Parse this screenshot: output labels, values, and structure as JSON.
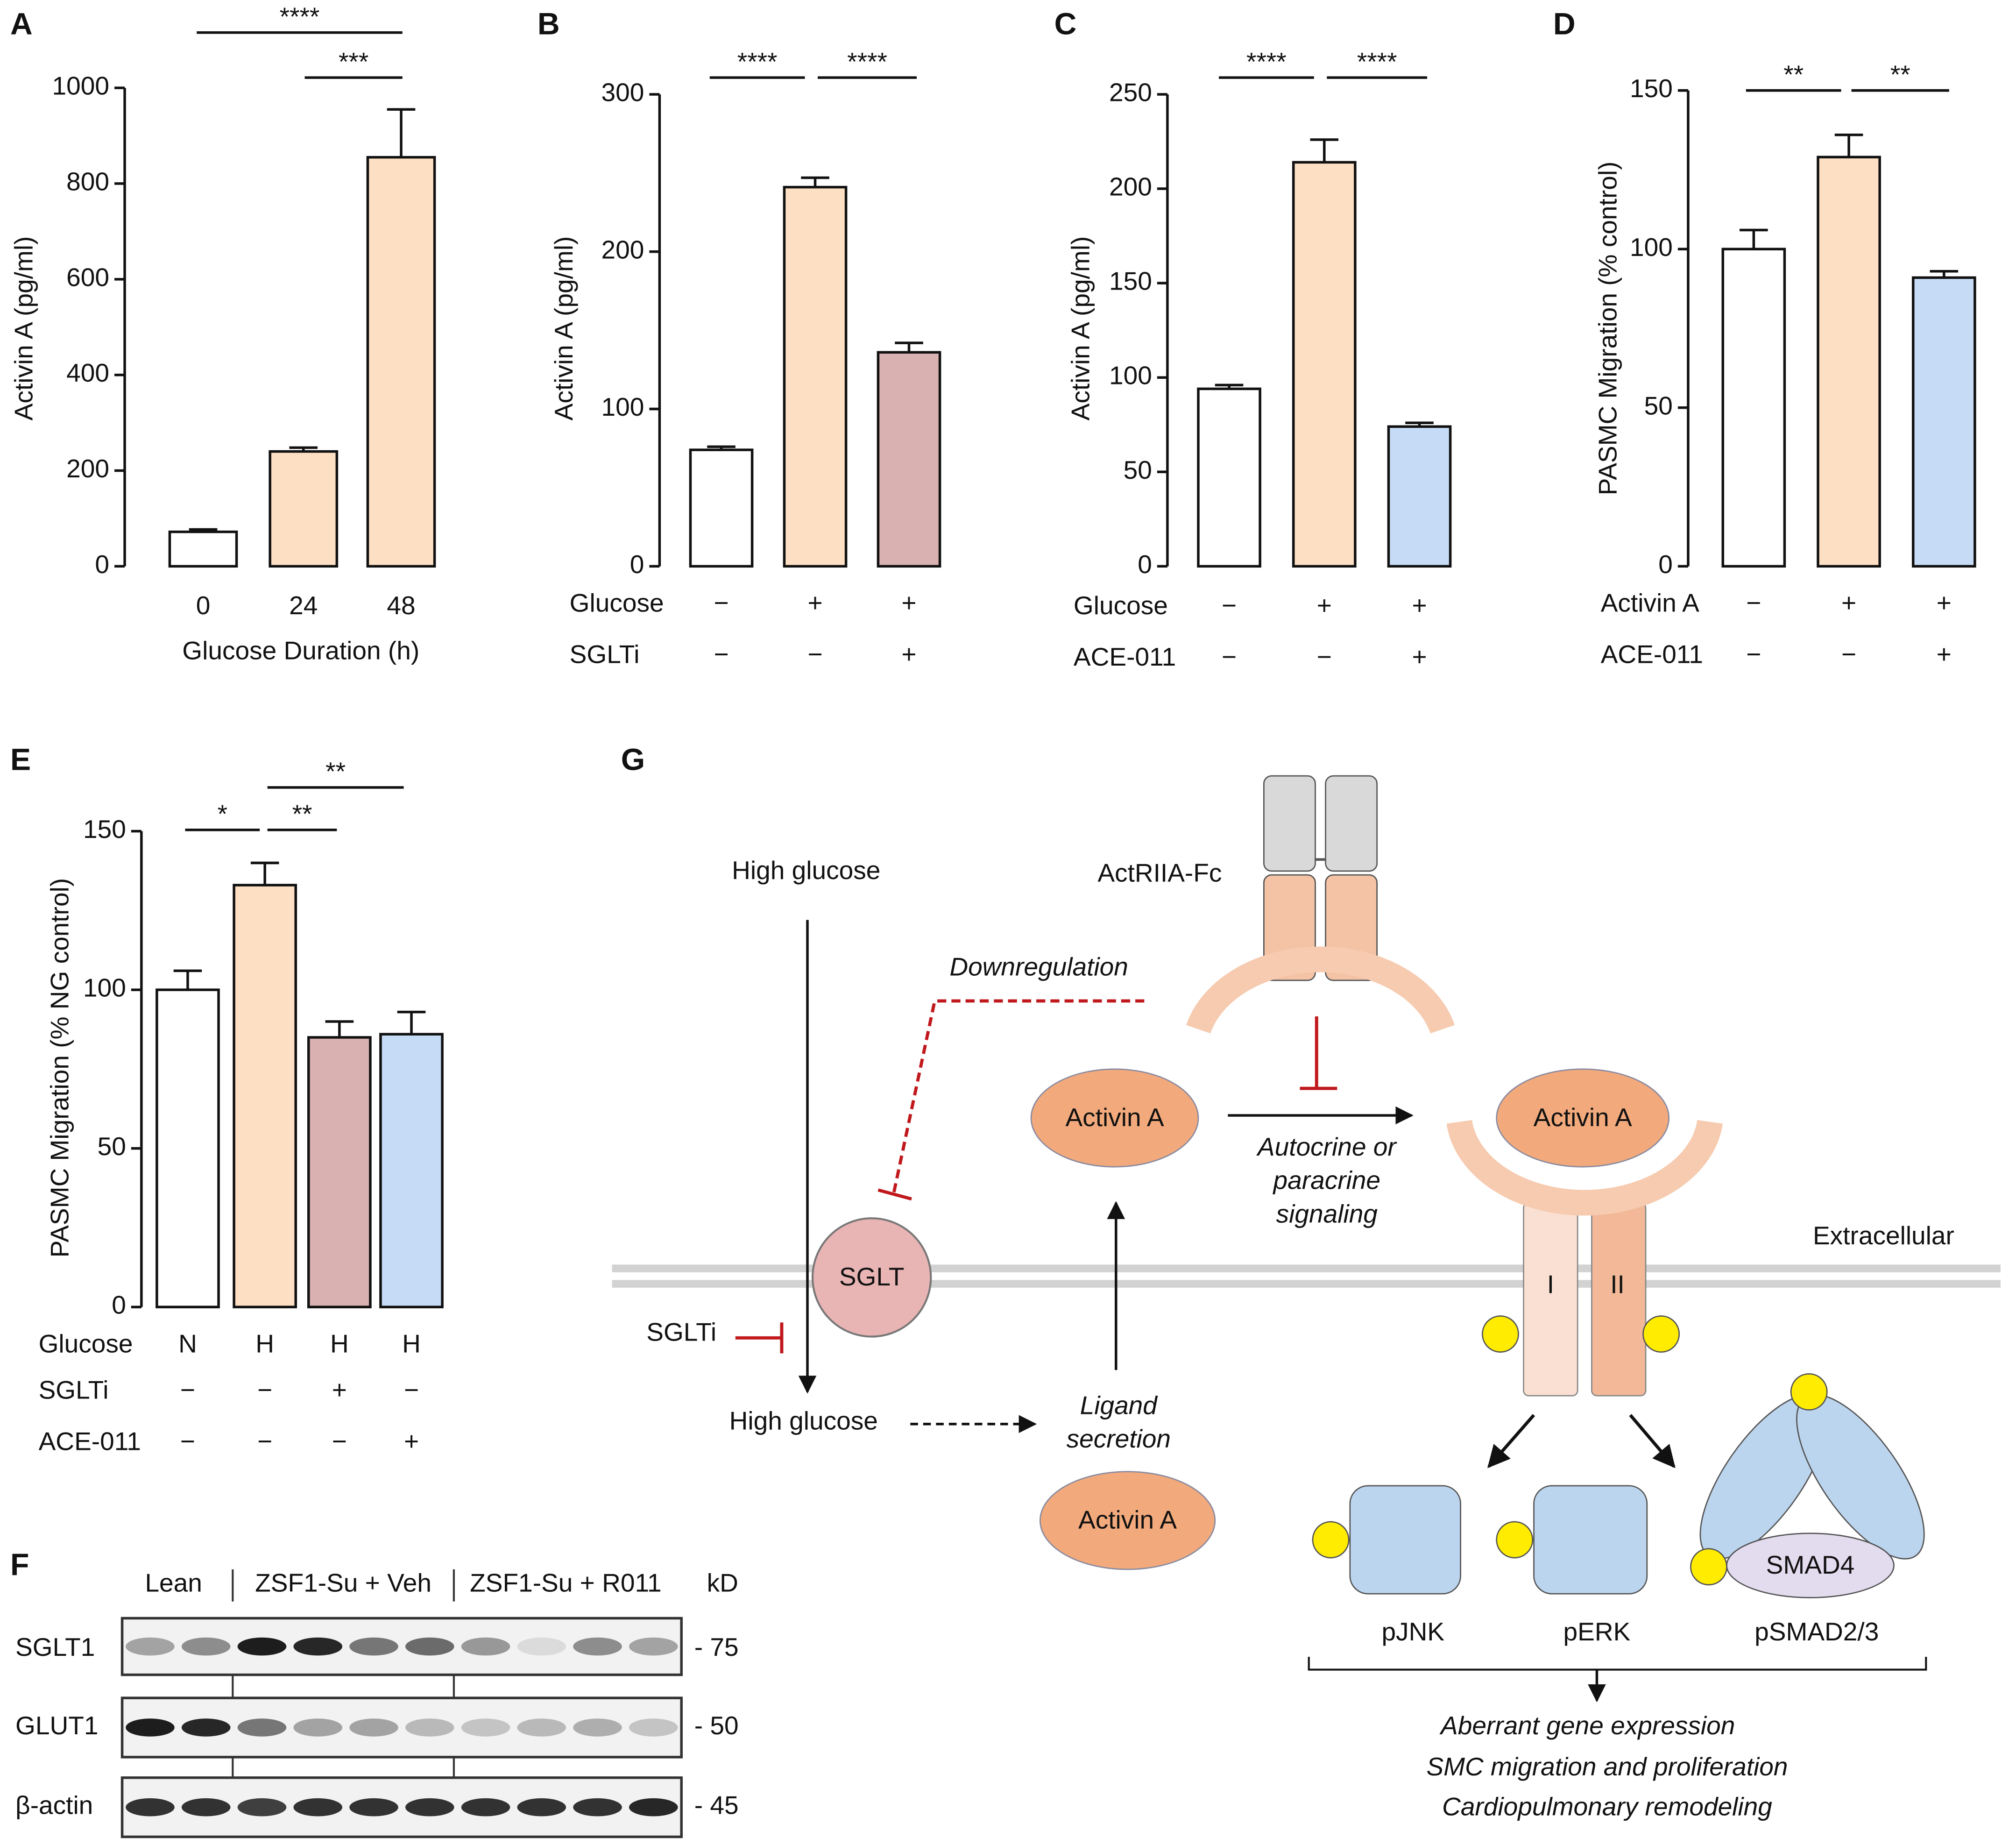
{
  "chart_data": [
    {
      "type": "bar",
      "panel": "A",
      "ylabel": "Activin A (pg/ml)",
      "xlabel": "Glucose Duration (h)",
      "categories": [
        "0",
        "24",
        "48"
      ],
      "values": [
        72,
        240,
        855
      ],
      "errors": [
        5,
        8,
        100
      ],
      "colors": [
        "#ffffff",
        "#fde0c4",
        "#fde0c4"
      ],
      "ylim": [
        0,
        1000
      ],
      "yticks": [
        0,
        200,
        400,
        600,
        800,
        1000
      ],
      "annotations": [
        "****",
        "***"
      ]
    },
    {
      "type": "bar",
      "panel": "B",
      "ylabel": "Activin A (pg/ml)",
      "conditions": [
        {
          "name": "Glucose",
          "values": [
            "−",
            "+",
            "+"
          ]
        },
        {
          "name": "SGLTi",
          "values": [
            "−",
            "−",
            "+"
          ]
        }
      ],
      "values": [
        74,
        241,
        136
      ],
      "errors": [
        2,
        6,
        6
      ],
      "colors": [
        "#ffffff",
        "#fde0c4",
        "#d9b1b1"
      ],
      "ylim": [
        0,
        300
      ],
      "yticks": [
        0,
        100,
        200,
        300
      ],
      "annotations": [
        "****",
        "****"
      ]
    },
    {
      "type": "bar",
      "panel": "C",
      "ylabel": "Activin A (pg/ml)",
      "conditions": [
        {
          "name": "Glucose",
          "values": [
            "−",
            "+",
            "+"
          ]
        },
        {
          "name": "ACE-011",
          "values": [
            "−",
            "−",
            "+"
          ]
        }
      ],
      "values": [
        94,
        214,
        74
      ],
      "errors": [
        2,
        12,
        2
      ],
      "colors": [
        "#ffffff",
        "#fde0c4",
        "#c6dbf5"
      ],
      "ylim": [
        0,
        250
      ],
      "yticks": [
        0,
        50,
        100,
        150,
        200,
        250
      ],
      "annotations": [
        "****",
        "****"
      ]
    },
    {
      "type": "bar",
      "panel": "D",
      "ylabel": "PASMC Migration (% control)",
      "conditions": [
        {
          "name": "Activin A",
          "values": [
            "−",
            "+",
            "+"
          ]
        },
        {
          "name": "ACE-011",
          "values": [
            "−",
            "−",
            "+"
          ]
        }
      ],
      "values": [
        100,
        129,
        91
      ],
      "errors": [
        6,
        7,
        2
      ],
      "colors": [
        "#ffffff",
        "#fde0c4",
        "#c6dbf5"
      ],
      "ylim": [
        0,
        150
      ],
      "yticks": [
        0,
        50,
        100,
        150
      ],
      "annotations": [
        "**",
        "**"
      ]
    },
    {
      "type": "bar",
      "panel": "E",
      "ylabel": "PASMC Migration (% NG control)",
      "conditions": [
        {
          "name": "Glucose",
          "values": [
            "N",
            "H",
            "H",
            "H"
          ]
        },
        {
          "name": "SGLTi",
          "values": [
            "−",
            "−",
            "+",
            "−"
          ]
        },
        {
          "name": "ACE-011",
          "values": [
            "−",
            "−",
            "−",
            "+"
          ]
        }
      ],
      "values": [
        100,
        133,
        85,
        86
      ],
      "errors": [
        6,
        7,
        5,
        7
      ],
      "colors": [
        "#ffffff",
        "#fde0c4",
        "#d9b1b1",
        "#c6dbf5"
      ],
      "ylim": [
        0,
        150
      ],
      "yticks": [
        0,
        50,
        100,
        150
      ],
      "annotations": [
        "*",
        "**",
        "**"
      ]
    }
  ],
  "blot": {
    "panel": "F",
    "groups": [
      "Lean",
      "ZSF1-Su + Veh",
      "ZSF1-Su + R011"
    ],
    "unit": "kD",
    "rows": [
      {
        "name": "SGLT1",
        "kd": "- 75"
      },
      {
        "name": "GLUT1",
        "kd": "- 50"
      },
      {
        "name": "β-actin",
        "kd": "- 45"
      }
    ]
  },
  "diagram": {
    "panel": "G",
    "high_glucose_top": "High glucose",
    "high_glucose_bottom": "High glucose",
    "drug": "ActRIIA-Fc",
    "downregulation": "Downregulation",
    "ligand_1": "Activin A",
    "ligand_2": "Activin A",
    "ligand_3": "Activin A",
    "signaling": [
      "Autocrine or",
      "paracrine",
      "signaling"
    ],
    "extracellular": "Extracellular",
    "transporter": "SGLT",
    "inhibitor": "SGLTi",
    "secretion": [
      "Ligand",
      "secretion"
    ],
    "receptor_1": "I",
    "receptor_2": "II",
    "effectors": [
      "pJNK",
      "pERK",
      "pSMAD2/3"
    ],
    "smad4": "SMAD4",
    "outcomes": [
      "Aberrant gene expression",
      "SMC migration and proliferation",
      "Cardiopulmonary remodeling"
    ]
  }
}
